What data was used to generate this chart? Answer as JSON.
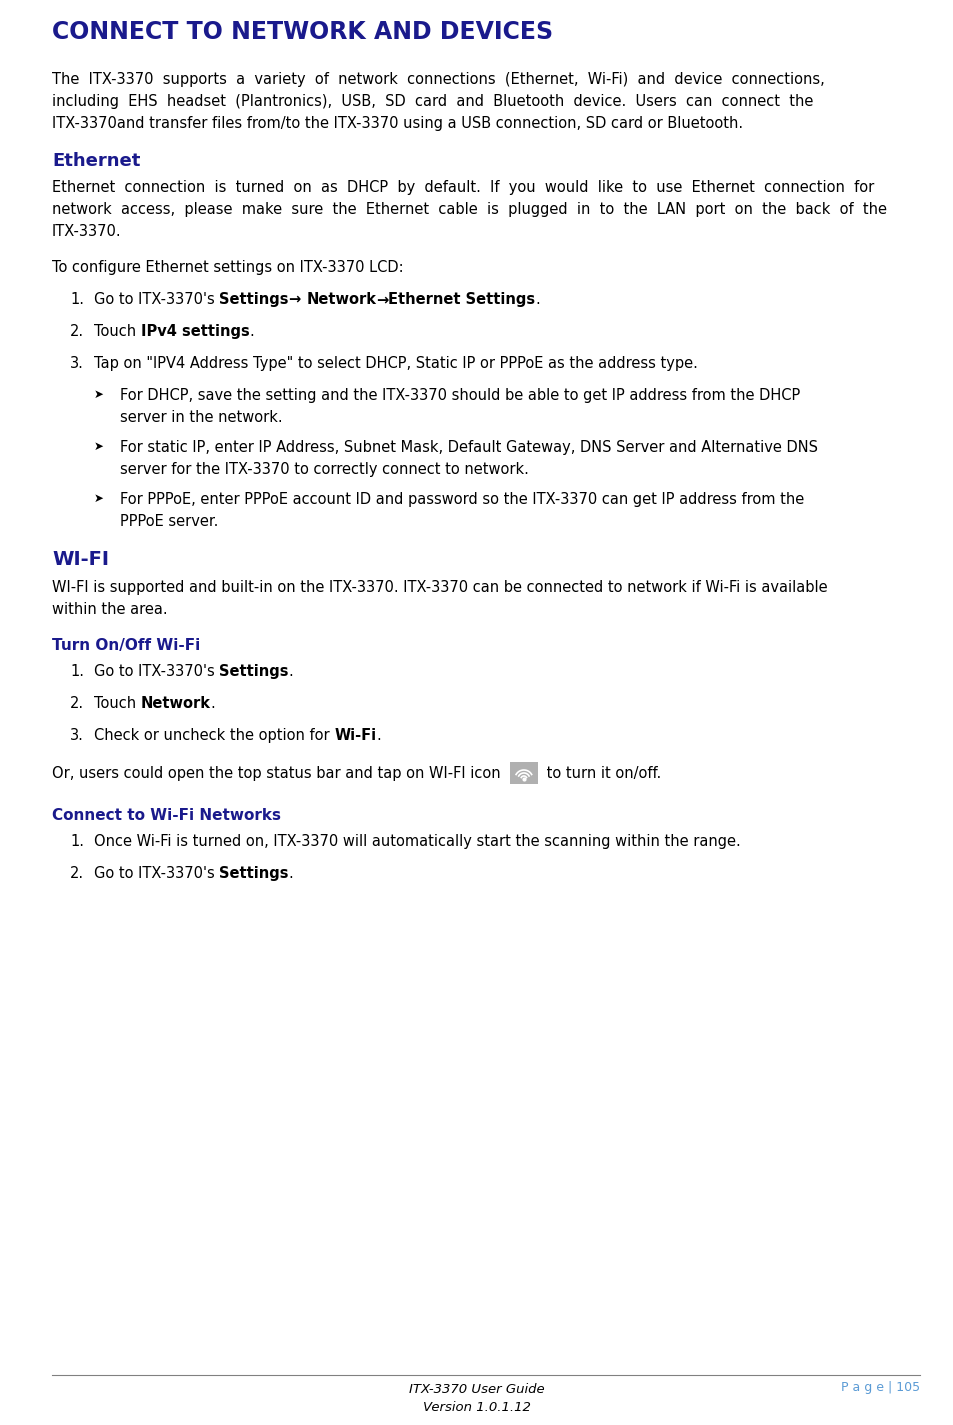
{
  "title": "CONNECT TO NETWORK AND DEVICES",
  "title_color": "#1a1a8c",
  "title_fontsize": 17,
  "body_fontsize": 10.5,
  "heading2_color": "#1a1a8c",
  "heading3_color": "#1a1a8c",
  "text_color": "#000000",
  "background_color": "#ffffff",
  "page_text": "P a g e | 105",
  "footer_center_line1": "ITX-3370 User Guide",
  "footer_center_line2": "Version 1.0.1.12"
}
